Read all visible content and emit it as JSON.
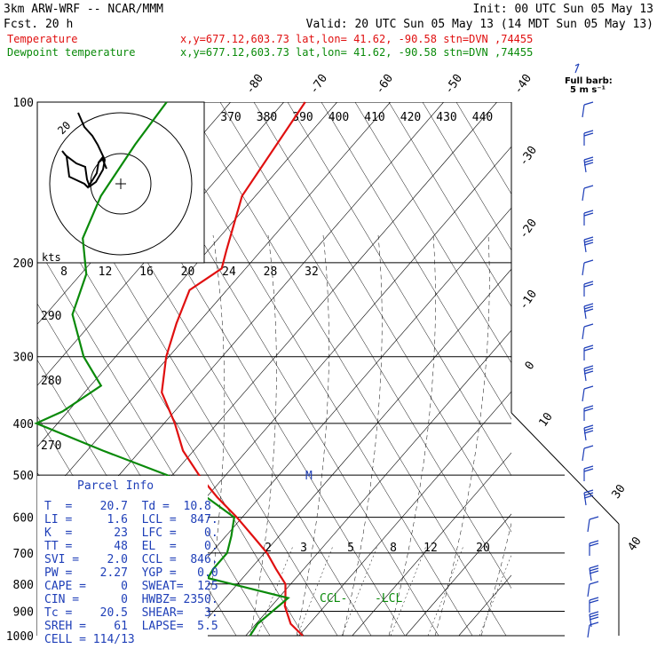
{
  "header": {
    "title": "3km ARW-WRF -- NCAR/MMM",
    "forecast": "Fcst.   20 h",
    "init": "Init: 00 UTC Sun 05 May 13",
    "valid": "Valid: 20 UTC Sun 05 May 13 (14 MDT Sun 05 May 13)",
    "temperature_label": "Temperature",
    "dewpoint_label": "Dewpoint temperature",
    "location_line": "x,y=677.12,603.73   lat,lon= 41.62, -90.58   stn=DVN ,74455"
  },
  "colors": {
    "temperature": "#e01010",
    "dewpoint": "#0a8a0a",
    "parcel_text": "#1f3fb8",
    "wind_barbs": "#1f3fb8"
  },
  "legend": {
    "full_barb_label": "Full barb:",
    "full_barb_value": "5 m s⁻¹"
  },
  "chart_data": {
    "type": "line",
    "title": "",
    "ylabel": "",
    "xlabel": "",
    "pressure_levels": [
      "100",
      "200",
      "300",
      "400",
      "500",
      "600",
      "700",
      "800",
      "900",
      "1000"
    ],
    "isotherm_labels": [
      "-80",
      "-70",
      "-60",
      "-50",
      "-40",
      "-30",
      "-20",
      "-10",
      "0",
      "10",
      "30",
      "40"
    ],
    "theta_e_labels": [
      "370",
      "380",
      "390",
      "400",
      "410",
      "420",
      "430",
      "440"
    ],
    "mixing_ratio_labels": [
      "2",
      "3",
      "5",
      "8",
      "12",
      "20"
    ],
    "theta_labels": [
      "290",
      "280",
      "270"
    ],
    "hodograph": {
      "speed_unit": "kts",
      "speed_labels": [
        "8",
        "12",
        "16",
        "20",
        "24",
        "28",
        "32"
      ],
      "ring_label": "20"
    },
    "series": [
      {
        "name": "Temperature",
        "pressure_hpa": [
          100,
          150,
          190,
          205,
          225,
          260,
          300,
          350,
          400,
          450,
          500,
          550,
          600,
          650,
          700,
          750,
          800,
          850,
          880,
          950,
          1000
        ],
        "temperature_c": [
          -66,
          -62.5,
          -56.5,
          -54.5,
          -57,
          -54,
          -50.5,
          -45.5,
          -38,
          -32,
          -25,
          -18,
          -11,
          -5,
          0.5,
          4.8,
          9,
          11.3,
          12.5,
          16.5,
          20.7
        ]
      },
      {
        "name": "Dewpoint temperature",
        "pressure_hpa": [
          100,
          120,
          150,
          180,
          210,
          250,
          300,
          340,
          380,
          400,
          450,
          500,
          550,
          600,
          650,
          700,
          750,
          780,
          850,
          950,
          1000
        ],
        "dewpoint_c": [
          -92,
          -91,
          -89,
          -85.5,
          -79,
          -75,
          -66,
          -58,
          -61,
          -64,
          -47,
          -31,
          -20,
          -11.5,
          -9,
          -7,
          -7,
          -6.5,
          11.8,
          10.3,
          10.8
        ]
      }
    ],
    "annotations": [
      "CCL",
      "LCL",
      "M"
    ],
    "wind_profile_label": "wind barbs (right column)"
  },
  "parcel_info": {
    "title": "Parcel Info",
    "rows": [
      "T  =    20.7  Td =  10.8",
      "LI =     1.6  LCL =  847.",
      "K  =      23  LFC =    0.",
      "TT =      48  EL  =    0.",
      "SVI =    2.0  CCL =  846.",
      "PW =    2.27  YGP =   0.0",
      "CAPE =     0  SWEAT=  125",
      "CIN =      0  HWBZ= 2350.",
      "Tc =    20.5  SHEAR=   3.",
      "SREH =    61  LAPSE=  5.5",
      "CELL = 114/13"
    ]
  }
}
